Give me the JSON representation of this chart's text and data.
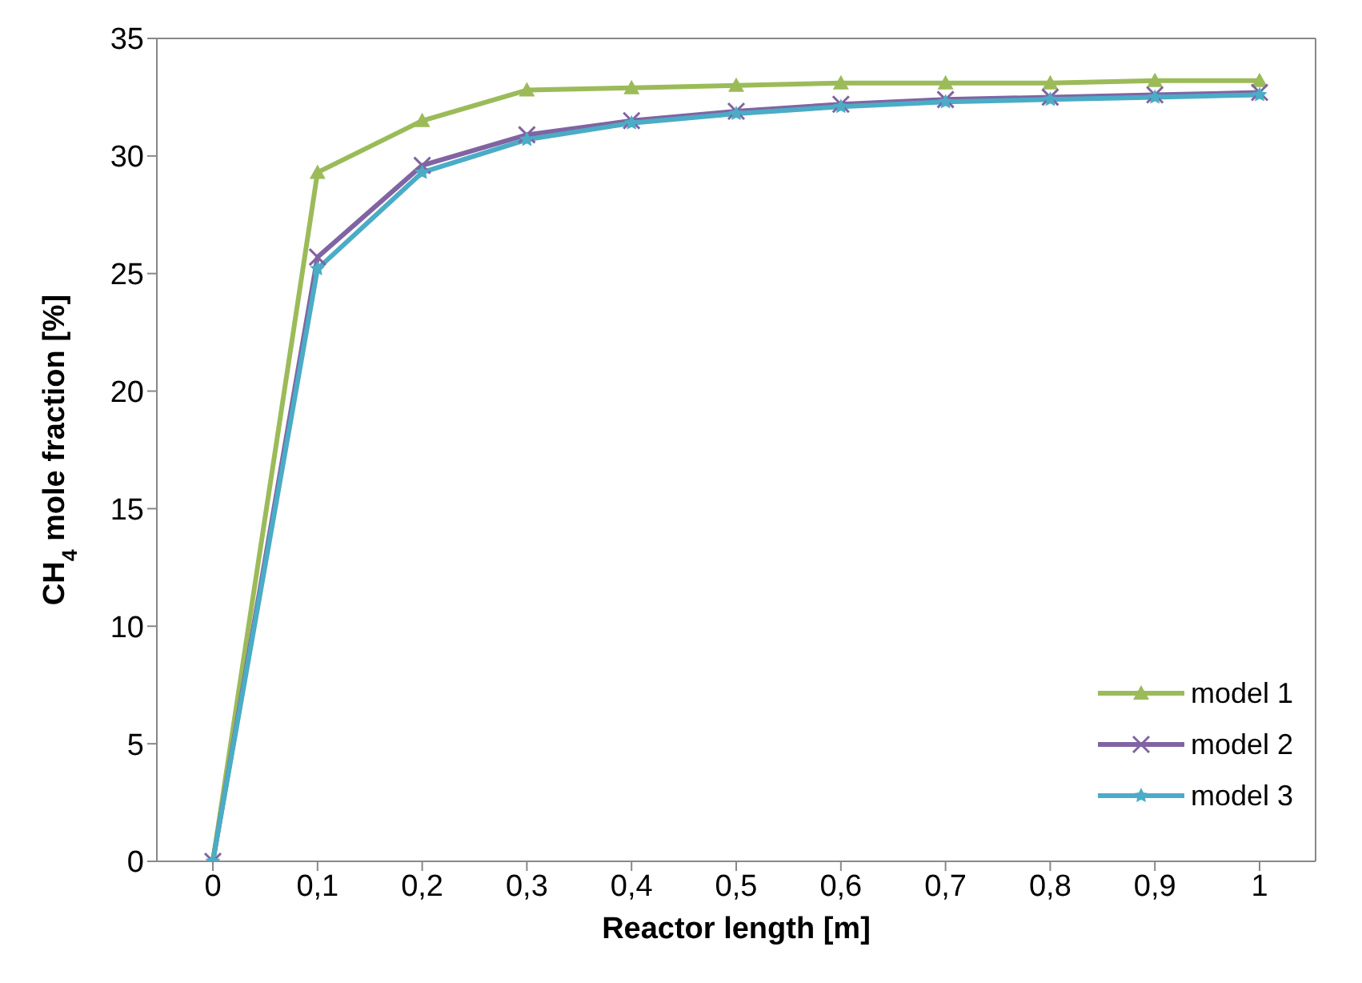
{
  "chart_data": {
    "type": "line",
    "xlabel": "Reactor length [m]",
    "ylabel": "CH$_{4}$ mole fraction [%]",
    "categories": [
      "0",
      "0,1",
      "0,2",
      "0,3",
      "0,4",
      "0,5",
      "0,6",
      "0,7",
      "0,8",
      "0,9",
      "1"
    ],
    "series": [
      {
        "name": "model 1",
        "color": "#9bbb59",
        "marker": "triangle",
        "values": [
          0,
          29.3,
          31.5,
          32.8,
          32.9,
          33.0,
          33.1,
          33.1,
          33.1,
          33.2,
          33.2
        ]
      },
      {
        "name": "model 2",
        "color": "#8064a2",
        "marker": "cross",
        "values": [
          0,
          25.7,
          29.6,
          30.9,
          31.5,
          31.9,
          32.2,
          32.4,
          32.5,
          32.6,
          32.7
        ]
      },
      {
        "name": "model 3",
        "color": "#4bacc6",
        "marker": "star",
        "values": [
          0,
          25.2,
          29.3,
          30.7,
          31.4,
          31.8,
          32.1,
          32.3,
          32.4,
          32.5,
          32.6
        ]
      }
    ],
    "ylim": [
      0,
      35
    ],
    "yticks": [
      0,
      5,
      10,
      15,
      20,
      25,
      30,
      35
    ],
    "grid": false,
    "legend": "bottom right",
    "line_style": "solid"
  }
}
